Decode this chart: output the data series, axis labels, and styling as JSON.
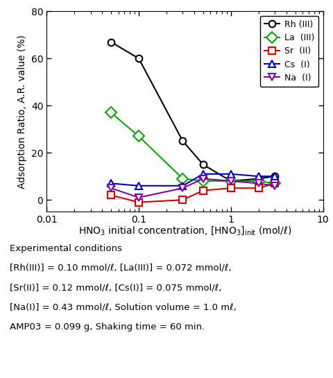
{
  "rh_x": [
    0.05,
    0.1,
    0.3,
    0.5,
    1.0,
    2.0,
    3.0
  ],
  "rh_y": [
    67,
    60,
    25,
    15,
    8,
    9,
    10
  ],
  "la_x": [
    0.05,
    0.1,
    0.3,
    0.5,
    1.0,
    2.0,
    3.0
  ],
  "la_y": [
    37,
    27,
    9,
    8,
    8,
    8,
    7
  ],
  "sr_x": [
    0.05,
    0.1,
    0.3,
    0.5,
    1.0,
    2.0,
    3.0
  ],
  "sr_y": [
    2,
    -1,
    0,
    4,
    5,
    5,
    7
  ],
  "cs_x": [
    0.05,
    0.1,
    0.3,
    0.5,
    1.0,
    2.0,
    3.0
  ],
  "cs_y": [
    7,
    6,
    6,
    11,
    11,
    10,
    10
  ],
  "na_x": [
    0.05,
    0.1,
    0.3,
    0.5,
    1.0,
    2.0,
    3.0
  ],
  "na_y": [
    5,
    1,
    5,
    9,
    8,
    7,
    6
  ],
  "rh_color": "#000000",
  "la_color": "#00aa00",
  "sr_color": "#dd0000",
  "cs_color": "#0000cc",
  "na_color": "#8800aa",
  "ylabel": "Adsorption Ratio, A.R. value (%)",
  "xlim": [
    0.01,
    10
  ],
  "ylim": [
    -5,
    80
  ],
  "yticks": [
    0,
    20,
    40,
    60,
    80
  ],
  "caption_line1": "Experimental conditions",
  "caption_line2": "[Rh(III)] = 0.10 mmol/ℓ, [La(III)] = 0.072 mmol/ℓ,",
  "caption_line3": "[Sr(II)] = 0.12 mmol/ℓ, [Cs(I)] = 0.075 mmol/ℓ,",
  "caption_line4": "[Na(I)] = 0.43 mmol/ℓ, Solution volume = 1.0 mℓ,",
  "caption_line5": "AMP03 = 0.099 g, Shaking time = 60 min."
}
